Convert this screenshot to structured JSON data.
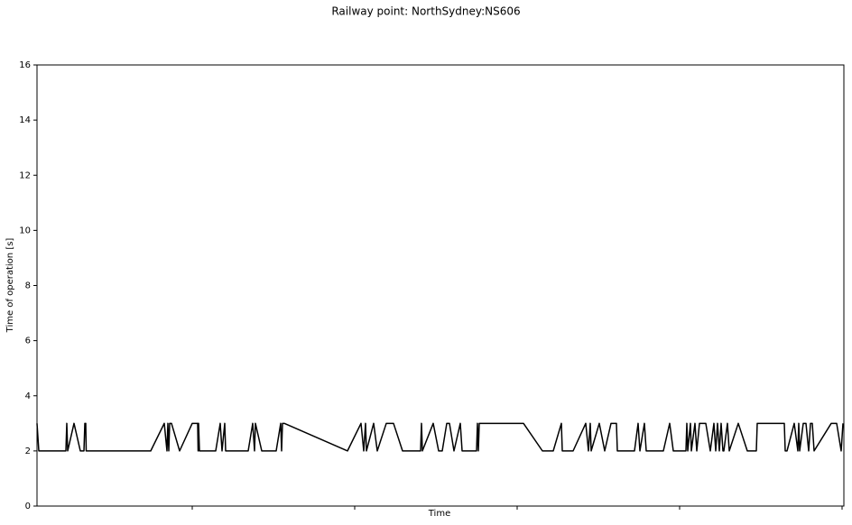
{
  "chart_data": {
    "type": "line",
    "title": "Railway point: NorthSydney:NS606",
    "xlabel": "Time",
    "ylabel": "Time of operation [s]",
    "x": [
      0,
      2,
      32,
      33,
      34,
      41,
      48,
      52,
      53,
      54,
      54.5,
      126,
      141,
      144,
      145,
      146,
      147,
      149,
      158,
      172,
      178,
      178.5,
      179,
      180,
      189,
      198,
      203,
      205,
      208,
      209,
      219,
      234,
      239,
      241,
      242,
      249,
      265,
      270,
      271,
      272,
      274,
      344,
      359,
      362,
      364,
      365,
      373,
      377,
      387,
      395,
      405,
      425,
      426,
      427,
      439,
      445,
      449,
      454,
      457,
      462,
      469,
      471,
      487,
      488,
      489,
      490,
      539,
      560,
      572,
      581,
      582,
      594,
      608,
      611,
      613,
      614,
      623,
      629,
      636,
      642,
      643,
      662,
      666,
      668,
      673,
      675,
      694,
      701,
      705,
      719,
      720,
      721,
      724,
      725,
      729,
      731,
      734,
      741,
      746,
      750,
      752,
      754,
      756,
      758,
      760,
      761,
      765,
      767,
      777,
      787,
      797,
      798,
      828,
      829,
      831,
      839,
      843,
      844,
      845,
      849,
      852,
      855,
      857,
      859,
      861,
      880,
      886,
      891,
      893
    ],
    "series": [
      {
        "color": "#000000",
        "values": [
          3,
          2,
          2,
          3,
          2,
          3,
          2,
          2,
          3,
          3,
          2,
          2,
          3,
          2,
          3,
          2,
          3,
          3,
          2,
          3,
          3,
          2,
          3,
          2,
          2,
          2,
          3,
          2,
          3,
          2,
          2,
          2,
          3,
          2,
          3,
          2,
          2,
          3,
          2,
          3,
          3,
          2,
          3,
          2,
          3,
          2,
          3,
          2,
          3,
          3,
          2,
          2,
          3,
          2,
          3,
          2,
          2,
          3,
          3,
          2,
          3,
          2,
          2,
          3,
          2,
          3,
          3,
          2,
          2,
          3,
          2,
          2,
          3,
          2,
          3,
          2,
          3,
          2,
          3,
          3,
          2,
          2,
          3,
          2,
          3,
          2,
          2,
          3,
          2,
          2,
          3,
          2,
          3,
          2,
          3,
          2,
          3,
          3,
          2,
          3,
          2,
          3,
          2,
          3,
          2,
          2,
          3,
          2,
          3,
          2,
          2,
          3,
          3,
          2,
          2,
          3,
          2,
          3,
          2,
          3,
          3,
          2,
          3,
          3,
          2,
          3,
          3,
          2,
          3
        ]
      }
    ],
    "xlim": [
      0,
      894
    ],
    "xticks": [
      172,
      352,
      532,
      712,
      892
    ],
    "ylim": [
      0,
      16
    ],
    "yticks": [
      0,
      2,
      4,
      6,
      8,
      10,
      12,
      14,
      16
    ]
  }
}
